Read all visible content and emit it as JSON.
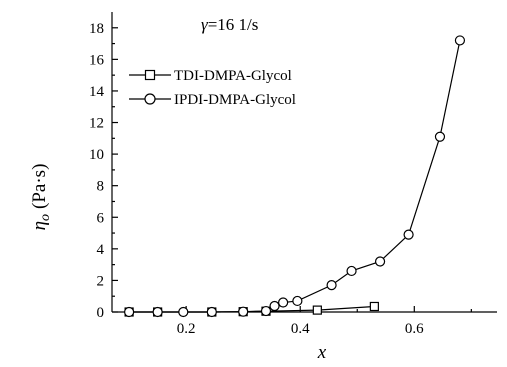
{
  "chart_data": {
    "type": "line",
    "xlabel": "x",
    "ylabel": {
      "symbol": "η",
      "sub": "o",
      "unit": "(Pa·s)"
    },
    "xlim": [
      0.07,
      0.745
    ],
    "ylim": [
      0,
      19
    ],
    "x_ticks": [
      0.2,
      0.4,
      0.6
    ],
    "x_tick_labels": [
      "0.2",
      "0.4",
      "0.6"
    ],
    "y_ticks": [
      0,
      2,
      4,
      6,
      8,
      10,
      12,
      14,
      16,
      18
    ],
    "y_tick_labels": [
      "0",
      "2",
      "4",
      "6",
      "8",
      "10",
      "12",
      "14",
      "16",
      "18"
    ],
    "annotation": {
      "symbol": "γ",
      "rest": "=16 1/s"
    },
    "legend_position": "top-left",
    "grid": false,
    "series": [
      {
        "name": "TDI-DMPA-Glycol",
        "marker": "square",
        "x": [
          0.1,
          0.15,
          0.245,
          0.3,
          0.34,
          0.43,
          0.53
        ],
        "y": [
          0.0,
          0.0,
          0.0,
          0.02,
          0.05,
          0.12,
          0.35
        ]
      },
      {
        "name": "IPDI-DMPA-Glycol",
        "marker": "circle",
        "x": [
          0.1,
          0.15,
          0.195,
          0.245,
          0.3,
          0.34,
          0.355,
          0.37,
          0.395,
          0.455,
          0.49,
          0.54,
          0.59,
          0.645,
          0.68
        ],
        "y": [
          0.0,
          0.0,
          0.0,
          0.0,
          0.02,
          0.06,
          0.38,
          0.6,
          0.7,
          1.7,
          2.6,
          3.2,
          4.9,
          11.1,
          17.2
        ]
      }
    ]
  }
}
